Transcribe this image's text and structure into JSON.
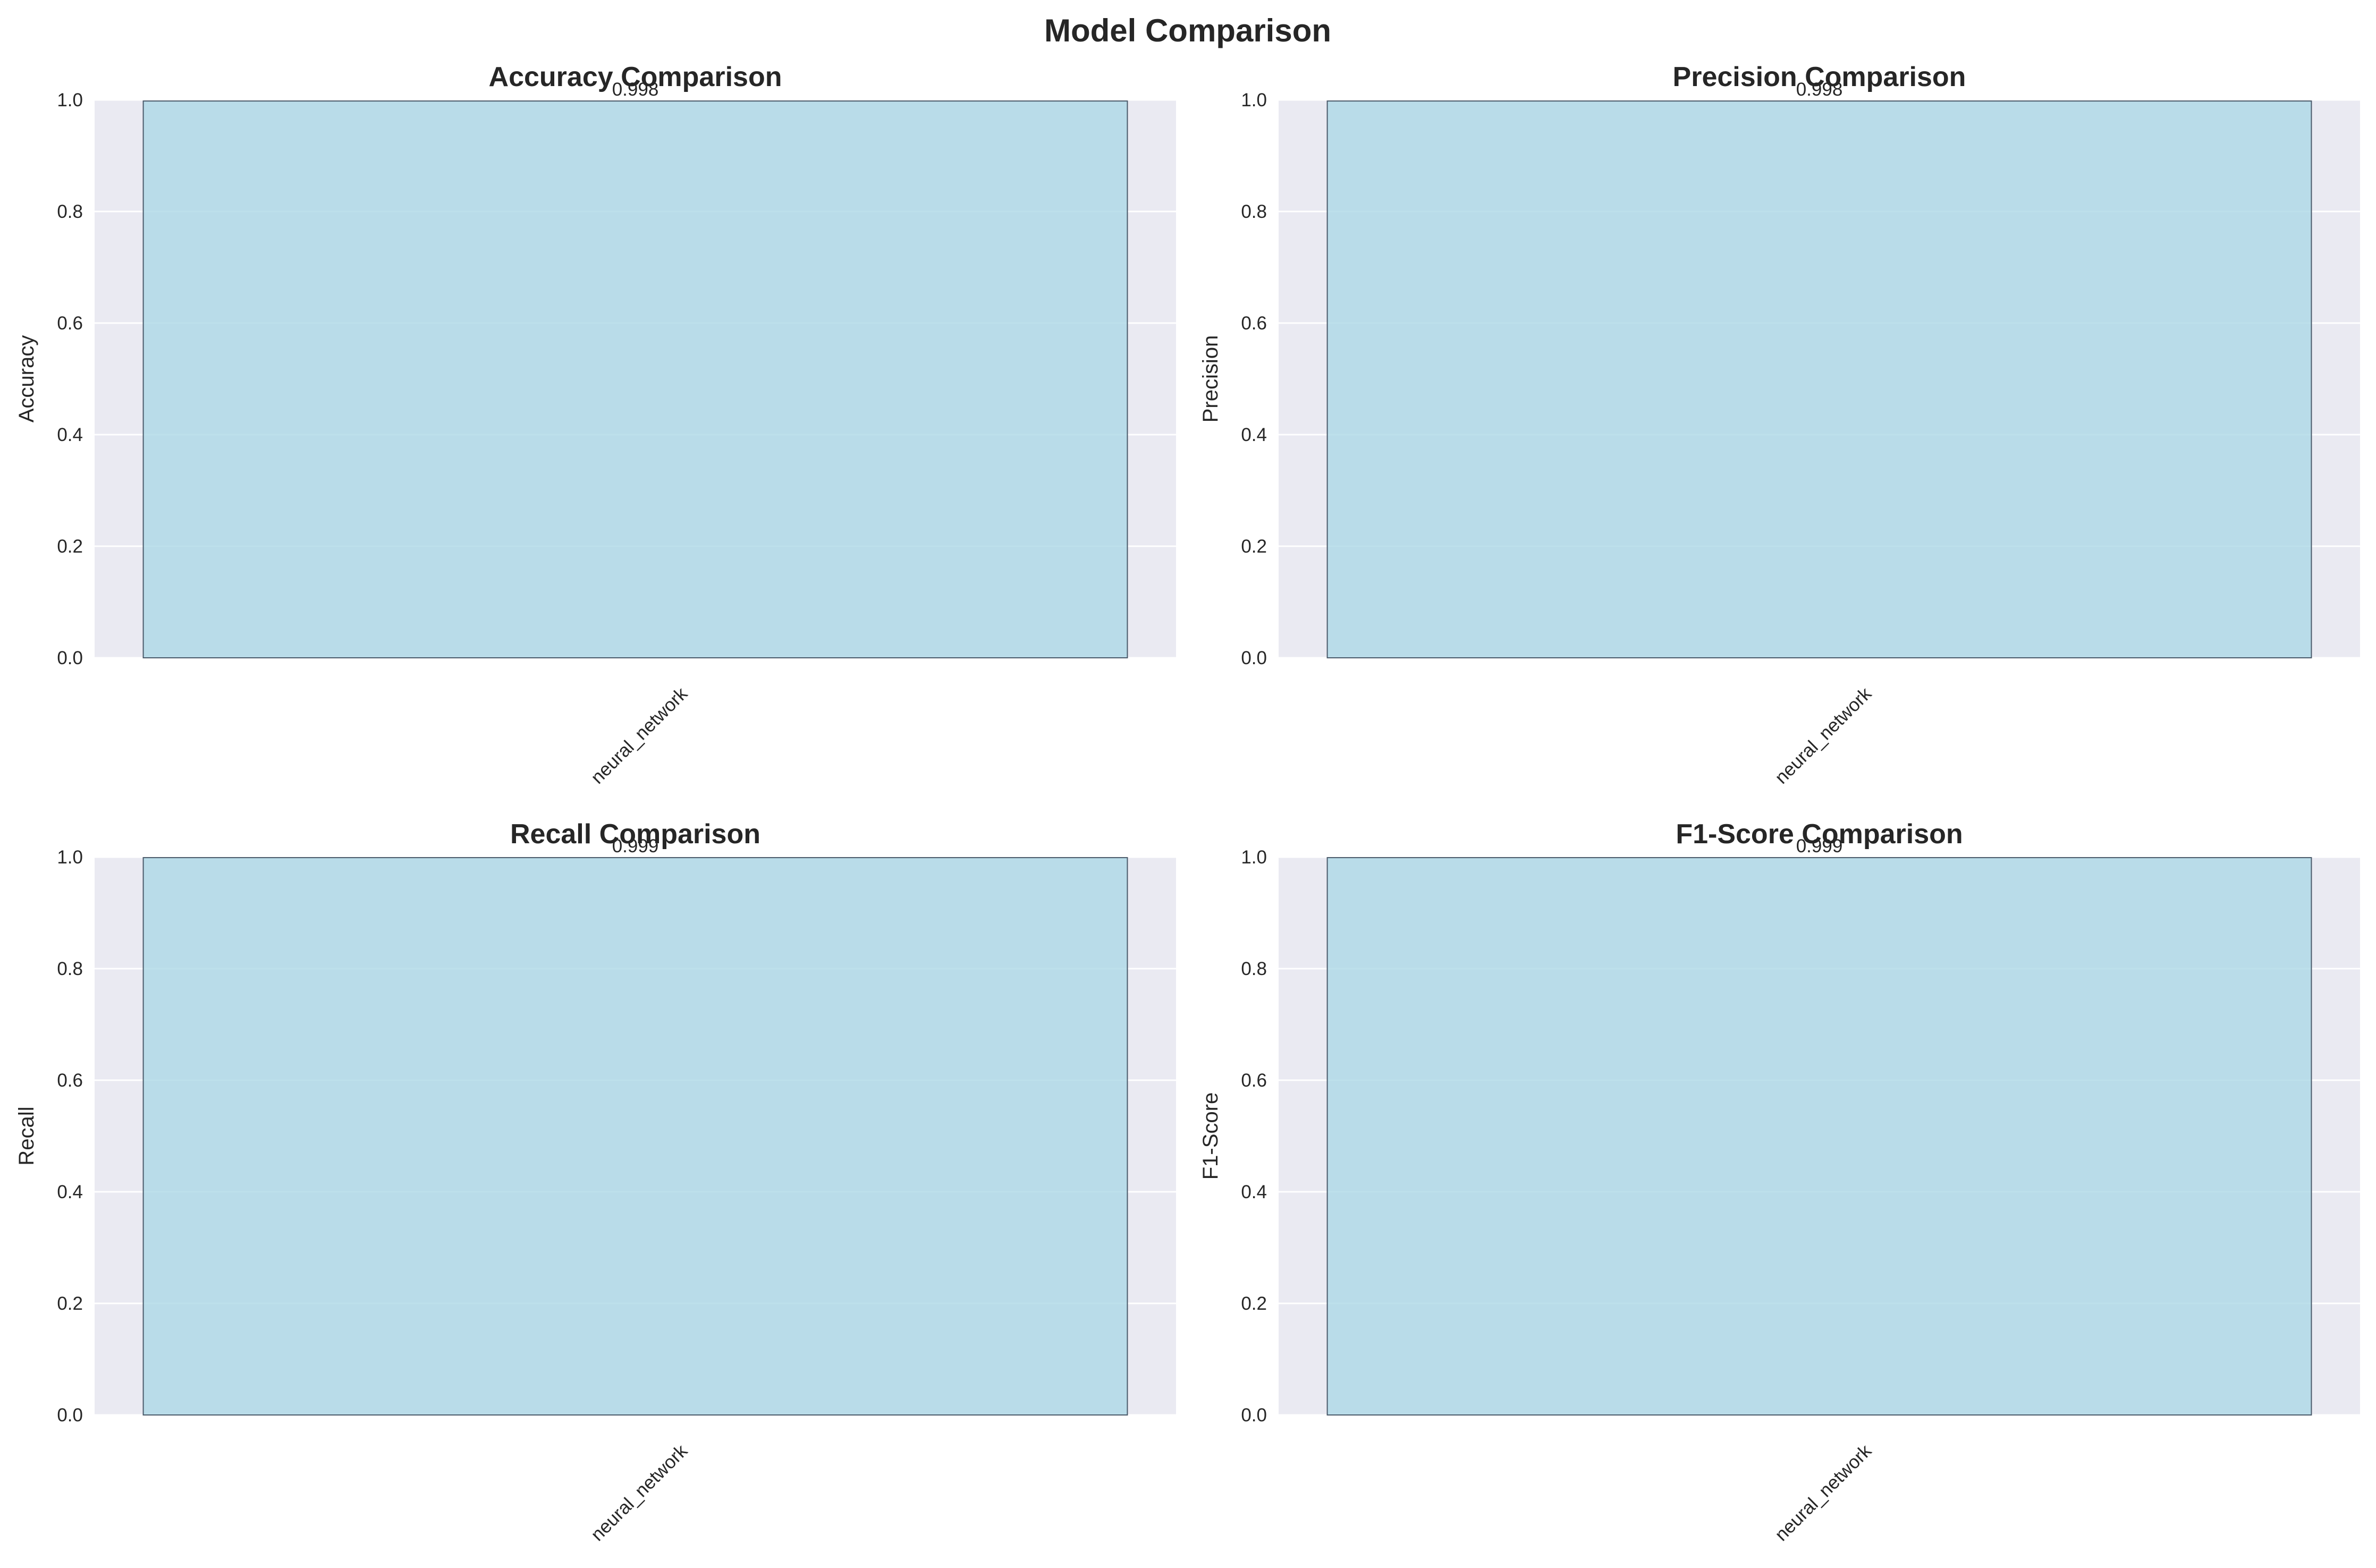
{
  "figure": {
    "title": "Model Comparison"
  },
  "colors": {
    "axes_background": "#eaeaf2",
    "grid": "#ffffff",
    "bar_fill": "#add8e6",
    "bar_edge": "#4a5a6a",
    "text": "#262626"
  },
  "chart_data": [
    {
      "type": "bar",
      "title": "Accuracy Comparison",
      "ylabel": "Accuracy",
      "xlabel": "",
      "categories": [
        "neural_network"
      ],
      "values": [
        0.998
      ],
      "value_labels": [
        "0.998"
      ],
      "ylim": [
        0,
        1.0
      ],
      "yticks": [
        "0.0",
        "0.2",
        "0.4",
        "0.6",
        "0.8",
        "1.0"
      ],
      "grid": "horizontal",
      "legend": "none"
    },
    {
      "type": "bar",
      "title": "Precision Comparison",
      "ylabel": "Precision",
      "xlabel": "",
      "categories": [
        "neural_network"
      ],
      "values": [
        0.998
      ],
      "value_labels": [
        "0.998"
      ],
      "ylim": [
        0,
        1.0
      ],
      "yticks": [
        "0.0",
        "0.2",
        "0.4",
        "0.6",
        "0.8",
        "1.0"
      ],
      "grid": "horizontal",
      "legend": "none"
    },
    {
      "type": "bar",
      "title": "Recall Comparison",
      "ylabel": "Recall",
      "xlabel": "",
      "categories": [
        "neural_network"
      ],
      "values": [
        0.999
      ],
      "value_labels": [
        "0.999"
      ],
      "ylim": [
        0,
        1.0
      ],
      "yticks": [
        "0.0",
        "0.2",
        "0.4",
        "0.6",
        "0.8",
        "1.0"
      ],
      "grid": "horizontal",
      "legend": "none"
    },
    {
      "type": "bar",
      "title": "F1-Score Comparison",
      "ylabel": "F1-Score",
      "xlabel": "",
      "categories": [
        "neural_network"
      ],
      "values": [
        0.999
      ],
      "value_labels": [
        "0.999"
      ],
      "ylim": [
        0,
        1.0
      ],
      "yticks": [
        "0.0",
        "0.2",
        "0.4",
        "0.6",
        "0.8",
        "1.0"
      ],
      "grid": "horizontal",
      "legend": "none"
    }
  ]
}
